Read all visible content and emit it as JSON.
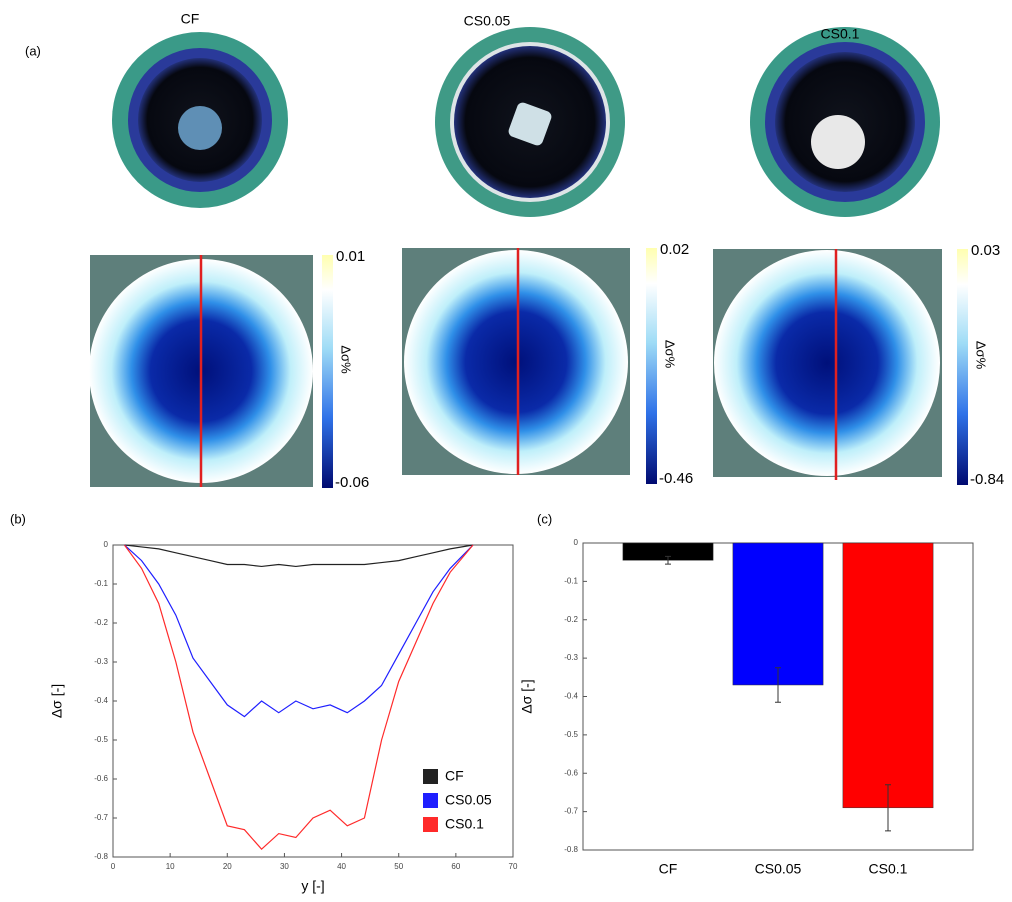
{
  "panel_labels": [
    "(a)",
    "(b)",
    "(c)"
  ],
  "panel_a": {
    "colorbar_label": "Δσ%",
    "samples": [
      {
        "name": "CF",
        "cmax": 0.01,
        "cmin": -0.06
      },
      {
        "name": "CS0.05",
        "cmax": 0.02,
        "cmin": -0.46
      },
      {
        "name": "CS0.1",
        "cmax": 0.03,
        "cmin": -0.84
      }
    ]
  },
  "chart_data": [
    {
      "type": "line",
      "xlabel": "y [-]",
      "ylabel": "Δσ [-]",
      "xlim": [
        0,
        70
      ],
      "xticks": [
        0,
        10,
        20,
        30,
        40,
        50,
        60,
        70
      ],
      "ylim": [
        -0.8,
        0
      ],
      "yticks": [
        0,
        -0.1,
        -0.2,
        -0.3,
        -0.4,
        -0.5,
        -0.6,
        -0.7,
        -0.8
      ],
      "legend": "lower right",
      "x": [
        2,
        5,
        8,
        11,
        14,
        17,
        20,
        23,
        26,
        29,
        32,
        35,
        38,
        41,
        44,
        47,
        50,
        53,
        56,
        59,
        63
      ],
      "series": [
        {
          "name": "CF",
          "color": "#222222",
          "values": [
            0,
            -0.005,
            -0.01,
            -0.02,
            -0.03,
            -0.04,
            -0.05,
            -0.05,
            -0.055,
            -0.05,
            -0.055,
            -0.05,
            -0.05,
            -0.05,
            -0.05,
            -0.045,
            -0.04,
            -0.03,
            -0.02,
            -0.01,
            0
          ]
        },
        {
          "name": "CS0.05",
          "color": "#1f1fff",
          "values": [
            0,
            -0.04,
            -0.1,
            -0.18,
            -0.29,
            -0.35,
            -0.41,
            -0.44,
            -0.4,
            -0.43,
            -0.4,
            -0.42,
            -0.41,
            -0.43,
            -0.4,
            -0.36,
            -0.28,
            -0.2,
            -0.12,
            -0.06,
            0
          ]
        },
        {
          "name": "CS0.1",
          "color": "#ff2a2a",
          "values": [
            0,
            -0.06,
            -0.15,
            -0.3,
            -0.48,
            -0.6,
            -0.72,
            -0.73,
            -0.78,
            -0.74,
            -0.75,
            -0.7,
            -0.68,
            -0.72,
            -0.7,
            -0.5,
            -0.35,
            -0.25,
            -0.15,
            -0.07,
            0
          ]
        }
      ]
    },
    {
      "type": "bar",
      "ylabel": "Δσ [-]",
      "ylim": [
        -0.8,
        0
      ],
      "yticks": [
        0,
        -0.1,
        -0.2,
        -0.3,
        -0.4,
        -0.5,
        -0.6,
        -0.7,
        -0.8
      ],
      "categories": [
        "CF",
        "CS0.05",
        "CS0.1"
      ],
      "values": [
        -0.045,
        -0.37,
        -0.69
      ],
      "errors": [
        0.01,
        0.045,
        0.06
      ],
      "colors": [
        "#000000",
        "#0000ff",
        "#ff0000"
      ]
    }
  ]
}
